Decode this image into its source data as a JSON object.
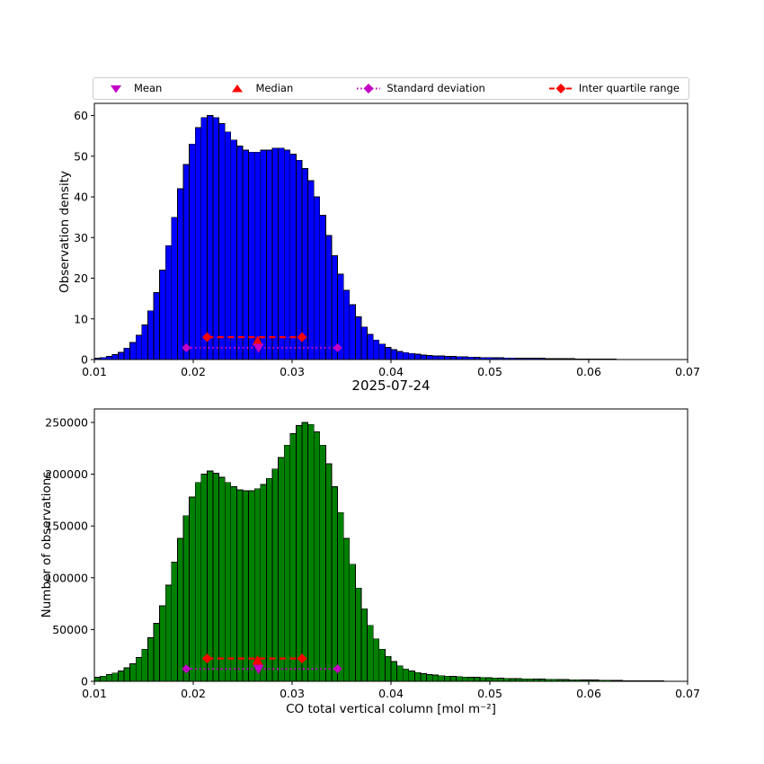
{
  "figure": {
    "title": "2025-07-24",
    "background": "#ffffff"
  },
  "colors": {
    "blue": "#0000ff",
    "green": "#008000",
    "red": "#ff0000",
    "magenta": "#c400c4",
    "black": "#000000",
    "legend_border": "#cccccc"
  },
  "legend": {
    "items": [
      {
        "label": "Mean",
        "icon": "mean-marker-icon",
        "marker": "triangle-down",
        "line": "none",
        "color": "#c400c4"
      },
      {
        "label": "Median",
        "icon": "median-marker-icon",
        "marker": "triangle-up",
        "line": "none",
        "color": "#ff0000"
      },
      {
        "label": "Standard deviation",
        "icon": "std-marker-icon",
        "marker": "diamond",
        "line": "dotted",
        "color": "#c400c4"
      },
      {
        "label": "Inter quartile range",
        "icon": "iqr-marker-icon",
        "marker": "diamond",
        "line": "dashed",
        "color": "#ff0000"
      }
    ]
  },
  "chart_data": [
    {
      "type": "bar",
      "panel": "top",
      "title": "",
      "xlabel": "",
      "ylabel": "Observation density",
      "bar_color": "#0000ff",
      "bar_edge": "#000000",
      "xlim": [
        0.01,
        0.07
      ],
      "ylim": [
        0,
        63
      ],
      "grid": false,
      "xticks": [
        0.01,
        0.02,
        0.03,
        0.04,
        0.05,
        0.06,
        0.07
      ],
      "xtick_labels": [
        "0.01",
        "0.02",
        "0.03",
        "0.04",
        "0.05",
        "0.06",
        "0.07"
      ],
      "yticks": [
        0,
        10,
        20,
        30,
        40,
        50,
        60
      ],
      "ytick_labels": [
        "0",
        "10",
        "20",
        "30",
        "40",
        "50",
        "60"
      ],
      "bin_start": 0.01,
      "bin_width": 0.0006,
      "values": [
        0.3,
        0.5,
        0.8,
        1.2,
        1.8,
        2.8,
        4.2,
        6.0,
        8.5,
        12.0,
        16.5,
        22.0,
        28.0,
        35.0,
        42.0,
        48.0,
        53.0,
        57.0,
        59.5,
        60.0,
        59.5,
        58.0,
        56.0,
        54.0,
        52.5,
        51.5,
        51.0,
        51.0,
        51.5,
        51.5,
        52.0,
        52.0,
        51.5,
        50.5,
        49.0,
        47.0,
        44.0,
        40.0,
        35.5,
        30.5,
        25.5,
        21.0,
        17.0,
        13.5,
        10.5,
        8.0,
        6.2,
        4.8,
        3.8,
        3.0,
        2.4,
        2.0,
        1.7,
        1.5,
        1.3,
        1.1,
        1.0,
        0.9,
        0.85,
        0.8,
        0.75,
        0.7,
        0.65,
        0.6,
        0.55,
        0.5,
        0.5,
        0.45,
        0.45,
        0.4,
        0.4,
        0.35,
        0.35,
        0.3,
        0.3,
        0.3,
        0.25,
        0.25,
        0.2,
        0.2,
        0.2,
        0.15,
        0.15,
        0.15,
        0.1,
        0.1,
        0.1,
        0.1,
        0.05,
        0.05
      ],
      "stats": {
        "mean": {
          "x": 0.0266,
          "y": 2.9
        },
        "median": {
          "x": 0.0265,
          "y": 4.5
        },
        "std_range": {
          "x1": 0.0193,
          "x2": 0.0346,
          "y": 2.9
        },
        "iqr": {
          "x1": 0.0214,
          "x2": 0.031,
          "y": 5.5
        }
      }
    },
    {
      "type": "bar",
      "panel": "bottom",
      "title": "",
      "xlabel": "CO total vertical column [mol m⁻²]",
      "ylabel": "Number of observations",
      "bar_color": "#008000",
      "bar_edge": "#000000",
      "xlim": [
        0.01,
        0.07
      ],
      "ylim": [
        0,
        263000
      ],
      "grid": false,
      "xticks": [
        0.01,
        0.02,
        0.03,
        0.04,
        0.05,
        0.06,
        0.07
      ],
      "xtick_labels": [
        "0.01",
        "0.02",
        "0.03",
        "0.04",
        "0.05",
        "0.06",
        "0.07"
      ],
      "yticks": [
        0,
        50000,
        100000,
        150000,
        200000,
        250000
      ],
      "ytick_labels": [
        "0",
        "50000",
        "100000",
        "150000",
        "200000",
        "250000"
      ],
      "bin_start": 0.01,
      "bin_width": 0.0006,
      "values": [
        4000,
        5000,
        6500,
        8000,
        10000,
        13000,
        17000,
        23000,
        31000,
        42000,
        56000,
        73000,
        93000,
        115000,
        138000,
        160000,
        178000,
        192000,
        200000,
        203000,
        201000,
        197000,
        192000,
        188000,
        185000,
        184000,
        184000,
        186000,
        190000,
        196000,
        205000,
        216000,
        228000,
        239000,
        247000,
        250000,
        248000,
        241000,
        228000,
        210000,
        188000,
        163000,
        138000,
        113000,
        90000,
        70000,
        54000,
        41000,
        31000,
        24000,
        19000,
        15000,
        12000,
        10000,
        8500,
        7500,
        6500,
        6000,
        5500,
        5000,
        4800,
        4500,
        4200,
        4000,
        3800,
        3600,
        3400,
        3200,
        3000,
        2800,
        2700,
        2600,
        2400,
        2300,
        2200,
        2100,
        2000,
        1900,
        1800,
        1700,
        1600,
        1500,
        1400,
        1300,
        1200,
        1100,
        1000,
        900,
        800,
        700,
        650,
        600,
        550,
        500,
        450,
        400
      ],
      "stats": {
        "mean": {
          "x": 0.0266,
          "y": 12000
        },
        "median": {
          "x": 0.0265,
          "y": 20000
        },
        "std_range": {
          "x1": 0.0193,
          "x2": 0.0346,
          "y": 12000
        },
        "iqr": {
          "x1": 0.0214,
          "x2": 0.031,
          "y": 22000
        }
      }
    }
  ]
}
